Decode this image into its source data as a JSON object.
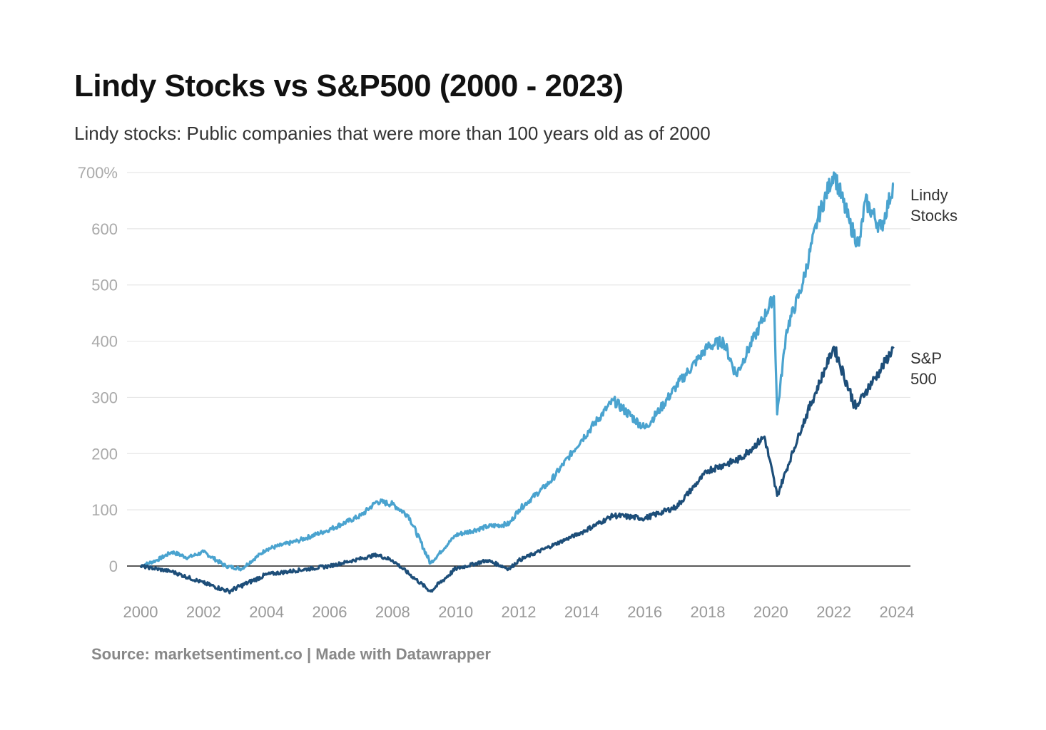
{
  "chart_data": {
    "type": "line",
    "title": "Lindy Stocks vs S&P500 (2000 - 2023)",
    "subtitle": "Lindy stocks: Public companies that were more than 100 years old as of 2000",
    "xlabel": "",
    "ylabel": "",
    "xlim": [
      2000,
      2024
    ],
    "ylim": [
      -50,
      700
    ],
    "grid": true,
    "y_ticks": [
      {
        "value": 700,
        "label": "700%"
      },
      {
        "value": 600,
        "label": "600"
      },
      {
        "value": 500,
        "label": "500"
      },
      {
        "value": 400,
        "label": "400"
      },
      {
        "value": 300,
        "label": "300"
      },
      {
        "value": 200,
        "label": "200"
      },
      {
        "value": 100,
        "label": "100"
      },
      {
        "value": 0,
        "label": "0"
      }
    ],
    "x_ticks": [
      "2000",
      "2002",
      "2004",
      "2006",
      "2008",
      "2010",
      "2012",
      "2014",
      "2016",
      "2018",
      "2020",
      "2022",
      "2024"
    ],
    "series": [
      {
        "name": "Lindy Stocks",
        "label_lines": [
          "Lindy",
          "Stocks"
        ],
        "color": "#4aa3cf",
        "x": [
          2000,
          2000.5,
          2001,
          2001.5,
          2002,
          2002.7,
          2003.2,
          2004,
          2005,
          2006,
          2007,
          2007.5,
          2008,
          2008.5,
          2009.2,
          2010,
          2011,
          2011.7,
          2012,
          2013,
          2014,
          2015,
          2015.7,
          2016,
          2016.5,
          2017,
          2018,
          2018.5,
          2018.9,
          2019.5,
          2020.1,
          2020.2,
          2020.5,
          2021,
          2021.5,
          2022,
          2022.5,
          2022.8,
          2023,
          2023.5,
          2023.9
        ],
        "values": [
          0,
          10,
          25,
          15,
          25,
          0,
          -5,
          30,
          45,
          65,
          90,
          115,
          110,
          90,
          5,
          55,
          70,
          75,
          100,
          150,
          225,
          295,
          260,
          245,
          280,
          320,
          390,
          400,
          340,
          410,
          480,
          270,
          420,
          500,
          620,
          700,
          610,
          570,
          650,
          600,
          680
        ]
      },
      {
        "name": "S&P 500",
        "label_lines": [
          "S&P",
          "500"
        ],
        "color": "#1d4e79",
        "x": [
          2000,
          2001,
          2002,
          2002.8,
          2004,
          2006,
          2007.5,
          2008,
          2009.2,
          2010,
          2011,
          2011.7,
          2012,
          2014,
          2015,
          2016,
          2017,
          2018,
          2019,
          2019.8,
          2020.2,
          2021,
          2022,
          2022.7,
          2023,
          2023.5,
          2023.9
        ],
        "values": [
          0,
          -10,
          -30,
          -45,
          -15,
          0,
          20,
          10,
          -45,
          -5,
          10,
          -5,
          10,
          60,
          90,
          85,
          105,
          170,
          190,
          230,
          125,
          250,
          390,
          280,
          310,
          350,
          390
        ]
      }
    ]
  },
  "footer": {
    "source": "Source: marketsentiment.co | Made with Datawrapper"
  }
}
